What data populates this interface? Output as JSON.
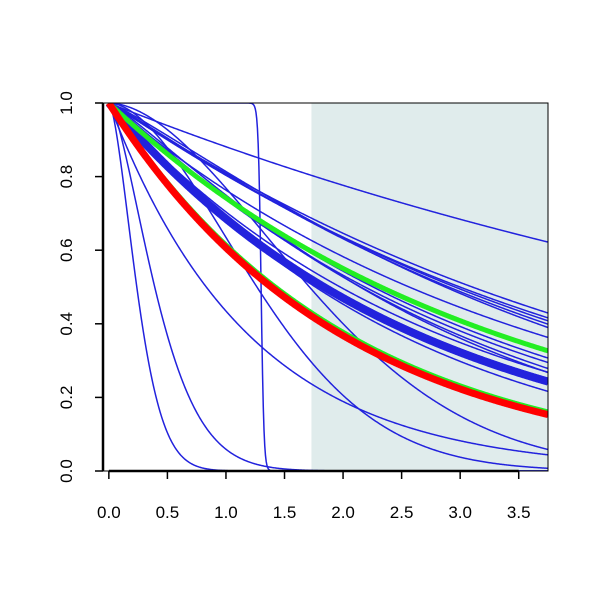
{
  "chart_data": {
    "type": "line",
    "title": "",
    "xlabel": "",
    "ylabel": "",
    "xlim": [
      -0.05,
      3.75
    ],
    "ylim": [
      0.0,
      1.0
    ],
    "x_ticks": [
      0.0,
      0.5,
      1.0,
      1.5,
      2.0,
      2.5,
      3.0,
      3.5
    ],
    "x_tick_labels": [
      "0.0",
      "0.5",
      "1.0",
      "1.5",
      "2.0",
      "2.5",
      "3.0",
      "3.5"
    ],
    "y_ticks": [
      0.0,
      0.2,
      0.4,
      0.6,
      0.8,
      1.0
    ],
    "y_tick_labels": [
      "0.0",
      "0.2",
      "0.4",
      "0.6",
      "0.8",
      "1.0"
    ],
    "grid": false,
    "shaded_region": {
      "x_from": 1.73,
      "x_to": 3.75,
      "color": "#e0ecec"
    },
    "colors": {
      "blue": "#2222dd",
      "red": "#ff0000",
      "green": "#22ee22"
    },
    "series": [
      {
        "kind": "weibull",
        "lambda": 7.9,
        "k": 1.0,
        "color": "blue",
        "width": 1.5
      },
      {
        "kind": "weibull",
        "lambda": 4.4,
        "k": 1.05,
        "color": "blue",
        "width": 1.5
      },
      {
        "kind": "weibull",
        "lambda": 4.25,
        "k": 1.05,
        "color": "blue",
        "width": 1.5
      },
      {
        "kind": "weibull",
        "lambda": 4.15,
        "k": 1.08,
        "color": "blue",
        "width": 1.5
      },
      {
        "kind": "weibull",
        "lambda": 4.05,
        "k": 1.1,
        "color": "blue",
        "width": 1.5
      },
      {
        "kind": "weibull",
        "lambda": 3.95,
        "k": 1.15,
        "color": "blue",
        "width": 1.5
      },
      {
        "kind": "weibull",
        "lambda": 3.7,
        "k": 1.0,
        "color": "blue",
        "width": 1.5
      },
      {
        "kind": "weibull",
        "lambda": 3.2,
        "k": 1.05,
        "color": "blue",
        "width": 1.5
      },
      {
        "kind": "weibull",
        "lambda": 3.1,
        "k": 1.05,
        "color": "blue",
        "width": 1.5
      },
      {
        "kind": "weibull",
        "lambda": 3.0,
        "k": 1.1,
        "color": "blue",
        "width": 1.5
      },
      {
        "kind": "weibull",
        "lambda": 2.95,
        "k": 1.15,
        "color": "blue",
        "width": 1.5
      },
      {
        "kind": "weibull",
        "lambda": 2.85,
        "k": 1.0,
        "color": "blue",
        "width": 1.5
      },
      {
        "kind": "weibull",
        "lambda": 2.6,
        "k": 1.0,
        "color": "blue",
        "width": 1.5
      },
      {
        "kind": "weibull",
        "lambda": 2.72,
        "k": 1.0,
        "color": "blue",
        "width": 1.5
      },
      {
        "kind": "weibull",
        "lambda": 2.5,
        "k": 1.05,
        "color": "blue",
        "width": 1.5
      },
      {
        "kind": "weibull",
        "lambda": 2.1,
        "k": 1.8,
        "color": "blue",
        "width": 1.5
      },
      {
        "kind": "weibull",
        "lambda": 1.55,
        "k": 1.8,
        "color": "blue",
        "width": 1.5
      },
      {
        "kind": "weibull",
        "lambda": 1.2,
        "k": 1.0,
        "color": "blue",
        "width": 1.5
      },
      {
        "kind": "weibull",
        "lambda": 0.5,
        "k": 1.5,
        "color": "blue",
        "width": 1.5
      },
      {
        "kind": "weibull",
        "lambda": 0.3,
        "k": 1.6,
        "color": "blue",
        "width": 1.5
      },
      {
        "kind": "logistic",
        "center": 1.3,
        "scale": 0.012,
        "color": "blue",
        "width": 1.5
      },
      {
        "kind": "weibull",
        "lambda": 2.65,
        "k": 1.0,
        "color": "blue",
        "width": 8
      },
      {
        "kind": "weibull",
        "lambda": 3.35,
        "k": 1.0,
        "color": "green",
        "width": 5
      },
      {
        "kind": "weibull",
        "lambda": 2.05,
        "k": 1.0,
        "color": "green",
        "width": 5
      },
      {
        "kind": "weibull",
        "lambda": 2.0,
        "k": 1.0,
        "color": "red",
        "width": 7
      }
    ]
  }
}
